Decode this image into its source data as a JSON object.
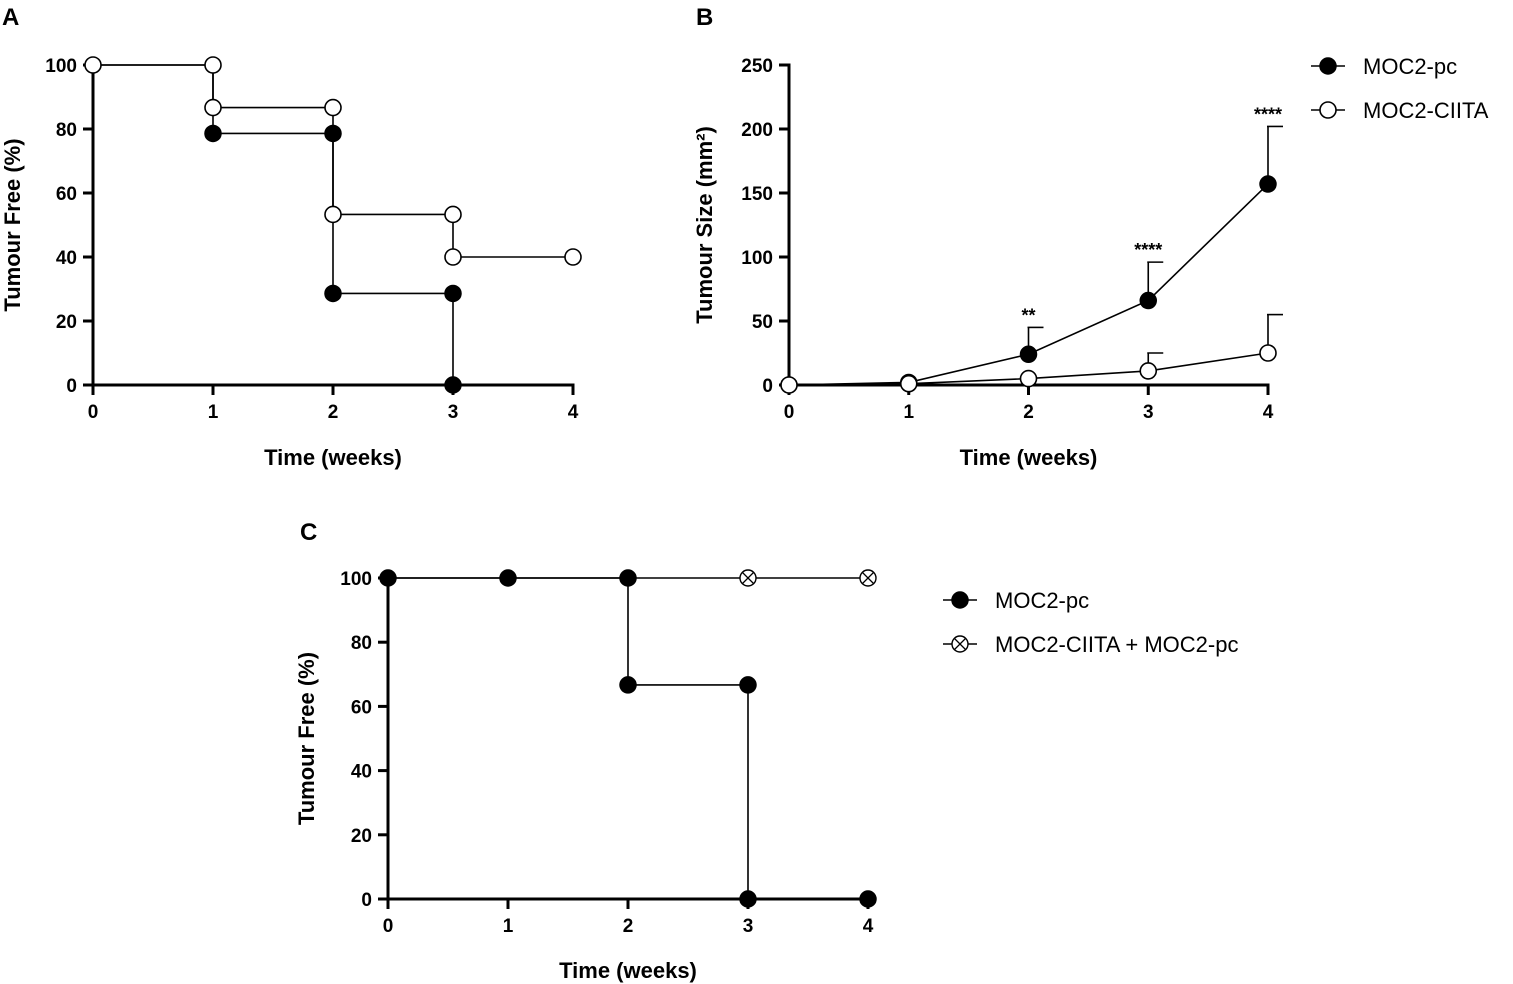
{
  "figure": {
    "width": 1513,
    "height": 984
  },
  "colors": {
    "ink": "#000000",
    "open_fill": "#ffffff"
  },
  "chart_data": [
    {
      "id": "A",
      "panel_label": "A",
      "type": "line",
      "step": true,
      "xlabel": "Time (weeks)",
      "ylabel": "Tumour Free (%)",
      "xlim": [
        0,
        4
      ],
      "ylim": [
        0,
        100
      ],
      "xticks": [
        0,
        1,
        2,
        3,
        4
      ],
      "yticks": [
        0,
        20,
        40,
        60,
        80,
        100
      ],
      "series": [
        {
          "name": "MOC2-pc",
          "marker": "filled",
          "path": [
            [
              0,
              100
            ],
            [
              1,
              100
            ],
            [
              1,
              78.6
            ],
            [
              2,
              78.6
            ],
            [
              2,
              28.6
            ],
            [
              3,
              28.6
            ],
            [
              3,
              0
            ]
          ],
          "points": [
            [
              1,
              78.6
            ],
            [
              2,
              78.6
            ],
            [
              2,
              28.6
            ],
            [
              3,
              28.6
            ],
            [
              3,
              0
            ]
          ]
        },
        {
          "name": "MOC2-CIITA",
          "marker": "open",
          "path": [
            [
              0,
              100
            ],
            [
              1,
              100
            ],
            [
              1,
              86.7
            ],
            [
              2,
              86.7
            ],
            [
              2,
              53.3
            ],
            [
              3,
              53.3
            ],
            [
              3,
              40
            ],
            [
              4,
              40
            ]
          ],
          "points": [
            [
              0,
              100
            ],
            [
              1,
              100
            ],
            [
              1,
              86.7
            ],
            [
              2,
              86.7
            ],
            [
              2,
              53.3
            ],
            [
              3,
              53.3
            ],
            [
              3,
              40
            ],
            [
              4,
              40
            ]
          ]
        }
      ]
    },
    {
      "id": "B",
      "panel_label": "B",
      "type": "line",
      "xlabel": "Time (weeks)",
      "ylabel": "Tumour Size (mm²)",
      "xlim": [
        0,
        4
      ],
      "ylim": [
        0,
        250
      ],
      "xticks": [
        0,
        1,
        2,
        3,
        4
      ],
      "yticks": [
        0,
        50,
        100,
        150,
        200,
        250
      ],
      "series": [
        {
          "name": "MOC2-pc",
          "marker": "filled",
          "x": [
            0,
            1,
            2,
            3,
            4
          ],
          "values": [
            0,
            2,
            24,
            66,
            157
          ],
          "error_upper": [
            0,
            0,
            45,
            96,
            202
          ]
        },
        {
          "name": "MOC2-CIITA",
          "marker": "open",
          "x": [
            0,
            1,
            2,
            3,
            4
          ],
          "values": [
            0,
            1,
            5,
            11,
            25
          ],
          "error_upper": [
            0,
            0,
            0,
            25,
            55
          ]
        }
      ],
      "annotations": [
        {
          "x": 2,
          "y": 45,
          "text": "**"
        },
        {
          "x": 3,
          "y": 96,
          "text": "****"
        },
        {
          "x": 4,
          "y": 202,
          "text": "****"
        }
      ],
      "legend": {
        "position": "right",
        "items": [
          {
            "label": "MOC2-pc",
            "marker": "filled"
          },
          {
            "label": "MOC2-CIITA",
            "marker": "open"
          }
        ]
      }
    },
    {
      "id": "C",
      "panel_label": "C",
      "type": "line",
      "step": true,
      "xlabel": "Time (weeks)",
      "ylabel": "Tumour Free (%)",
      "xlim": [
        0,
        4
      ],
      "ylim": [
        0,
        100
      ],
      "xticks": [
        0,
        1,
        2,
        3,
        4
      ],
      "yticks": [
        0,
        20,
        40,
        60,
        80,
        100
      ],
      "series": [
        {
          "name": "MOC2-CIITA + MOC2-pc",
          "marker": "crossed",
          "path": [
            [
              0,
              100
            ],
            [
              4,
              100
            ]
          ],
          "points": [
            [
              3,
              100
            ],
            [
              4,
              100
            ]
          ]
        },
        {
          "name": "MOC2-pc",
          "marker": "filled",
          "path": [
            [
              0,
              100
            ],
            [
              1,
              100
            ],
            [
              2,
              100
            ],
            [
              2,
              66.7
            ],
            [
              3,
              66.7
            ],
            [
              3,
              0
            ],
            [
              4,
              0
            ]
          ],
          "points": [
            [
              0,
              100
            ],
            [
              1,
              100
            ],
            [
              2,
              100
            ],
            [
              2,
              66.7
            ],
            [
              3,
              66.7
            ],
            [
              3,
              0
            ],
            [
              4,
              0
            ]
          ]
        }
      ],
      "legend": {
        "position": "right",
        "items": [
          {
            "label": "MOC2-pc",
            "marker": "filled"
          },
          {
            "label": "MOC2-CIITA + MOC2-pc",
            "marker": "crossed"
          }
        ]
      }
    }
  ]
}
